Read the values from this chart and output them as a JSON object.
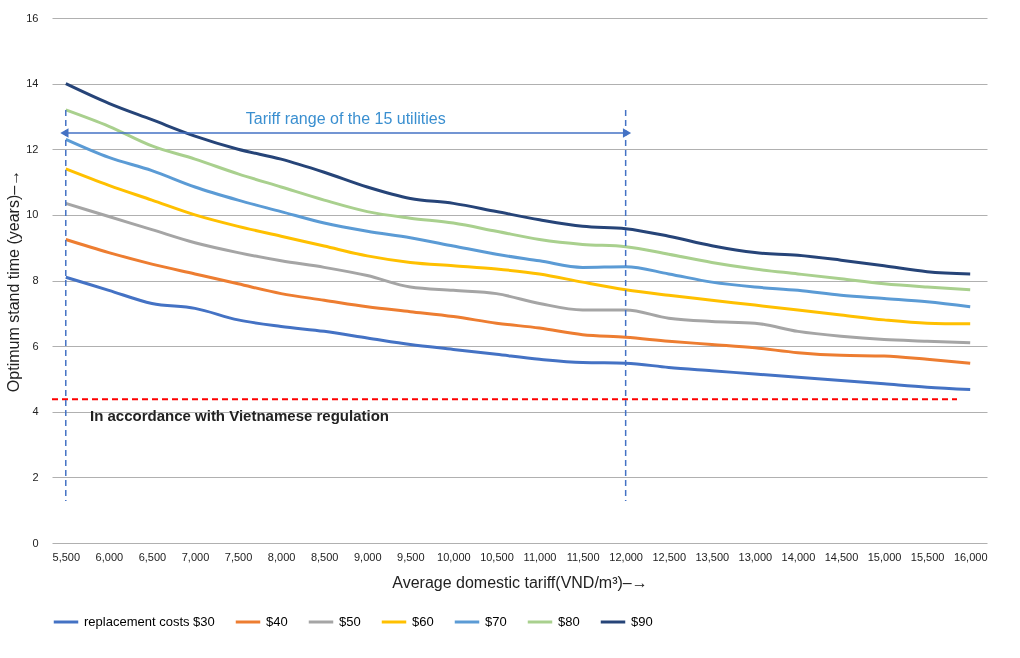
{
  "chart_data": {
    "type": "line",
    "xlabel": "Average domestic tariff(VND/m³)–→",
    "ylabel": "Optimum stand time (years)–→",
    "categories": [
      "5,500",
      "6,000",
      "6,500",
      "7,000",
      "7,500",
      "8,000",
      "8,500",
      "9,000",
      "9,500",
      "10,000",
      "10,500",
      "11,000",
      "11,500",
      "12,000",
      "12,500",
      "13,500",
      "13,000",
      "14,000",
      "14,500",
      "15,000",
      "15,500",
      "16,000"
    ],
    "series": [
      {
        "name": "replacement costs $30",
        "color": "#4472c4",
        "values": [
          8.1,
          7.7,
          7.3,
          7.15,
          6.8,
          6.6,
          6.45,
          6.25,
          6.05,
          5.9,
          5.75,
          5.6,
          5.5,
          5.48,
          5.35,
          5.25,
          5.15,
          5.05,
          4.95,
          4.85,
          4.75,
          4.68
        ]
      },
      {
        "name": "$40",
        "color": "#ed7d31",
        "values": [
          9.25,
          8.85,
          8.5,
          8.2,
          7.9,
          7.6,
          7.4,
          7.2,
          7.05,
          6.9,
          6.7,
          6.55,
          6.35,
          6.27,
          6.15,
          6.05,
          5.95,
          5.8,
          5.72,
          5.7,
          5.6,
          5.48
        ]
      },
      {
        "name": "$50",
        "color": "#a5a5a5",
        "values": [
          10.35,
          9.95,
          9.55,
          9.15,
          8.85,
          8.6,
          8.4,
          8.15,
          7.8,
          7.7,
          7.6,
          7.3,
          7.1,
          7.1,
          6.85,
          6.75,
          6.7,
          6.45,
          6.3,
          6.2,
          6.15,
          6.1
        ]
      },
      {
        "name": "$60",
        "color": "#ffc000",
        "values": [
          11.4,
          10.9,
          10.45,
          10.0,
          9.65,
          9.35,
          9.05,
          8.75,
          8.55,
          8.45,
          8.35,
          8.2,
          7.95,
          7.72,
          7.55,
          7.4,
          7.25,
          7.1,
          6.95,
          6.8,
          6.7,
          6.68
        ]
      },
      {
        "name": "$70",
        "color": "#5b9bd5",
        "values": [
          12.3,
          11.75,
          11.35,
          10.85,
          10.45,
          10.1,
          9.75,
          9.5,
          9.3,
          9.05,
          8.8,
          8.6,
          8.4,
          8.42,
          8.2,
          7.95,
          7.8,
          7.7,
          7.55,
          7.45,
          7.35,
          7.2
        ]
      },
      {
        "name": "$80",
        "color": "#a9d08e",
        "values": [
          13.2,
          12.7,
          12.1,
          11.7,
          11.25,
          10.85,
          10.45,
          10.1,
          9.9,
          9.75,
          9.5,
          9.25,
          9.1,
          9.03,
          8.8,
          8.55,
          8.35,
          8.2,
          8.05,
          7.9,
          7.8,
          7.72
        ]
      },
      {
        "name": "$90",
        "color": "#264478",
        "values": [
          14.0,
          13.4,
          12.9,
          12.4,
          12.0,
          11.7,
          11.3,
          10.85,
          10.5,
          10.35,
          10.1,
          9.85,
          9.65,
          9.58,
          9.35,
          9.06,
          8.85,
          8.77,
          8.62,
          8.45,
          8.27,
          8.2
        ]
      }
    ],
    "ylim": [
      0,
      16
    ],
    "yticks": [
      0,
      2,
      4,
      6,
      8,
      10,
      12,
      14,
      16
    ],
    "grid": "y",
    "legend": "bottom",
    "line_style": "solid",
    "ref_lines": [
      {
        "axis": "y",
        "value": 4.38,
        "label": "In accordance with Vietnamese regulation",
        "color": "#ff0000",
        "line_style": "dashed"
      },
      {
        "axis": "x",
        "value": "5,500",
        "color": "#4472c4",
        "line_style": "dashed"
      },
      {
        "axis": "x",
        "value": "12,000",
        "color": "#4472c4",
        "line_style": "dashed"
      }
    ],
    "annotations": [
      "Tariff range of the 15 utilities"
    ]
  }
}
